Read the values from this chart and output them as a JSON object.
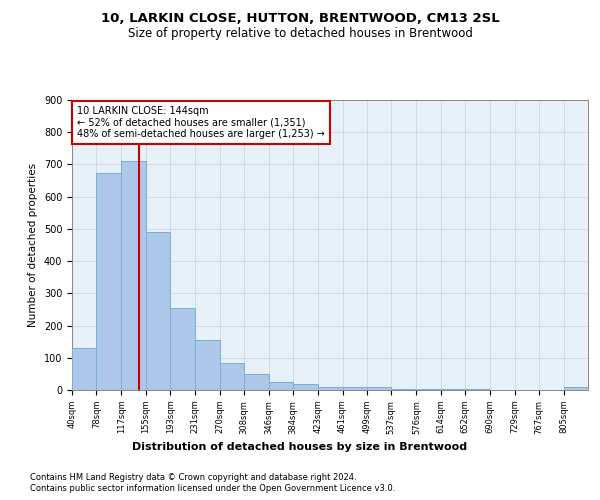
{
  "title": "10, LARKIN CLOSE, HUTTON, BRENTWOOD, CM13 2SL",
  "subtitle": "Size of property relative to detached houses in Brentwood",
  "xlabel": "Distribution of detached houses by size in Brentwood",
  "ylabel": "Number of detached properties",
  "bar_color": "#adc8e8",
  "bar_edge_color": "#7aaed6",
  "background_color": "#e8f0f8",
  "grid_color": "#c8d8ec",
  "annotation_line_color": "#cc0000",
  "annotation_box_color": "#cc0000",
  "annotation_text": "10 LARKIN CLOSE: 144sqm\n← 52% of detached houses are smaller (1,351)\n48% of semi-detached houses are larger (1,253) →",
  "property_size_sqm": 144,
  "bin_edges": [
    40,
    78,
    117,
    155,
    193,
    231,
    270,
    308,
    346,
    384,
    423,
    461,
    499,
    537,
    576,
    614,
    652,
    690,
    729,
    767,
    805
  ],
  "counts": [
    130,
    675,
    710,
    490,
    255,
    155,
    85,
    50,
    25,
    18,
    10,
    10,
    8,
    4,
    3,
    2,
    2,
    1,
    1,
    1,
    8
  ],
  "ylim": [
    0,
    900
  ],
  "yticks": [
    0,
    100,
    200,
    300,
    400,
    500,
    600,
    700,
    800,
    900
  ],
  "footnote_line1": "Contains HM Land Registry data © Crown copyright and database right 2024.",
  "footnote_line2": "Contains public sector information licensed under the Open Government Licence v3.0."
}
